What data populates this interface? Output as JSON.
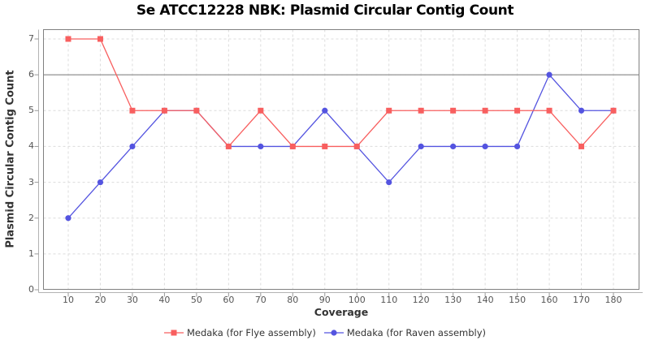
{
  "title": "Se ATCC12228 NBK: Plasmid Circular Contig Count",
  "chart_data": {
    "type": "line",
    "title": "Se ATCC12228 NBK: Plasmid Circular Contig Count",
    "xlabel": "Coverage",
    "ylabel": "Plasmid Circular Contig Count",
    "x": [
      10,
      20,
      30,
      40,
      50,
      60,
      70,
      80,
      90,
      100,
      110,
      120,
      130,
      140,
      150,
      160,
      170,
      180
    ],
    "series": [
      {
        "name": "Medaka (for Flye assembly)",
        "marker": "square",
        "color": "#f85f5f",
        "values": [
          7,
          7,
          5,
          5,
          5,
          4,
          5,
          4,
          4,
          4,
          5,
          5,
          5,
          5,
          5,
          5,
          4,
          5
        ]
      },
      {
        "name": "Medaka (for Raven assembly)",
        "marker": "circle",
        "color": "#5454e0",
        "values": [
          2,
          3,
          4,
          5,
          5,
          4,
          4,
          4,
          5,
          4,
          3,
          4,
          4,
          4,
          4,
          6,
          5,
          5
        ]
      }
    ],
    "xticks": [
      10,
      20,
      30,
      40,
      50,
      60,
      70,
      80,
      90,
      100,
      110,
      120,
      130,
      140,
      150,
      160,
      170,
      180
    ],
    "yticks": [
      0,
      1,
      2,
      3,
      4,
      5,
      6,
      7
    ],
    "ylim": [
      0,
      7.3
    ],
    "grid": true,
    "reference_line_y": 6,
    "legend_position": "bottom"
  },
  "colors": {
    "grid": "#dcdcdc",
    "reference_line": "#9b9b9b",
    "plot_border": "#808080",
    "spine": "#b3b3b3",
    "tick": "#999999",
    "tick_label": "#555555",
    "axis_label": "#333333",
    "title": "#000000",
    "legend_text": "#333333",
    "background": "#ffffff"
  }
}
